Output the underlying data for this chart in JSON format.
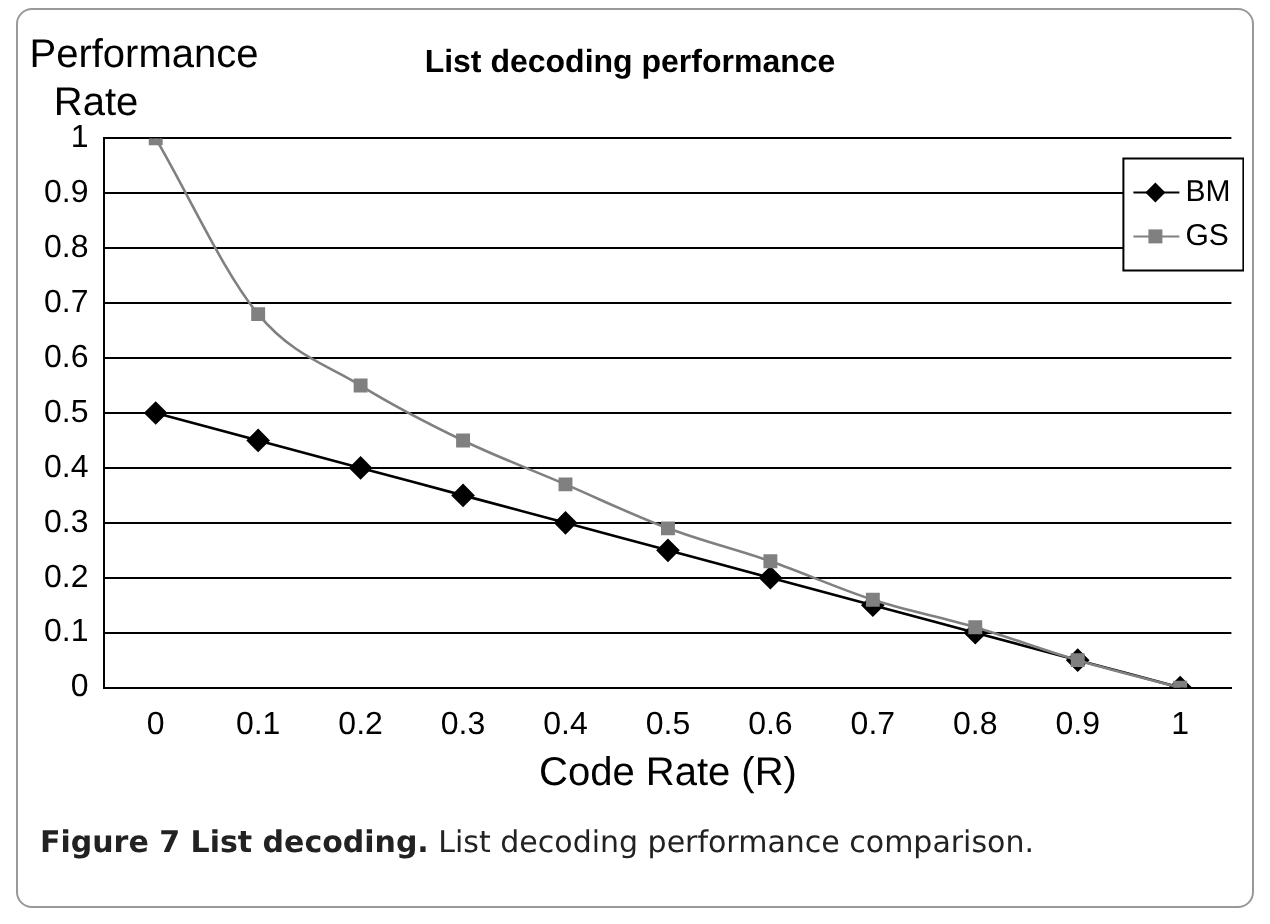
{
  "chart_data": {
    "type": "line",
    "title": "List decoding performance",
    "xlabel": "Code Rate (R)",
    "ylabel": "Performance Rate",
    "categories": [
      "0",
      "0.1",
      "0.2",
      "0.3",
      "0.4",
      "0.5",
      "0.6",
      "0.7",
      "0.8",
      "0.9",
      "1"
    ],
    "series": [
      {
        "name": "BM",
        "color": "#000000",
        "marker": "diamond",
        "values": [
          0.5,
          0.45,
          0.4,
          0.35,
          0.3,
          0.25,
          0.2,
          0.15,
          0.1,
          0.05,
          0
        ]
      },
      {
        "name": "GS",
        "color": "#808080",
        "marker": "square",
        "values": [
          1,
          0.68,
          0.55,
          0.45,
          0.37,
          0.29,
          0.23,
          0.16,
          0.11,
          0.05,
          0
        ]
      }
    ],
    "ylim": [
      0,
      1
    ],
    "yticks": [
      0,
      0.1,
      0.2,
      0.3,
      0.4,
      0.5,
      0.6,
      0.7,
      0.8,
      0.9,
      1
    ],
    "grid": "y",
    "legend": "top right",
    "line_style": "solid",
    "annotations": [
      "Figure 7 List decoding.",
      "List decoding performance comparison."
    ]
  }
}
